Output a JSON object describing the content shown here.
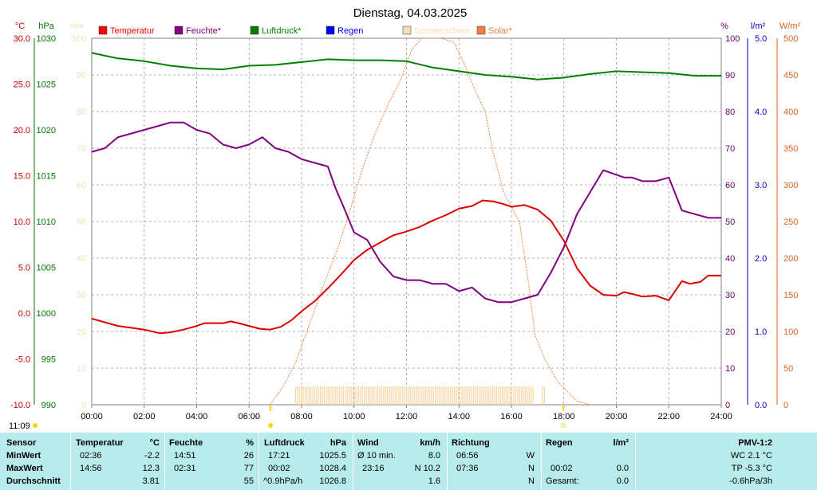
{
  "chart_data": {
    "type": "line",
    "title": "Dienstag, 04.03.2025",
    "x": {
      "ticks": [
        "00:00",
        "02:00",
        "04:00",
        "06:00",
        "08:00",
        "10:00",
        "12:00",
        "14:00",
        "16:00",
        "18:00",
        "20:00",
        "22:00",
        "24:00"
      ],
      "range_hours": [
        0,
        24
      ]
    },
    "axes": {
      "left": [
        {
          "unit": "°C",
          "color": "#cc0000",
          "range": [
            -10,
            30
          ],
          "ticks": [
            "30.0",
            "25.0",
            "20.0",
            "15.0",
            "10.0",
            "5.0",
            "0.0",
            "-5.0",
            "-10.0"
          ]
        },
        {
          "unit": "hPa",
          "color": "#007700",
          "range": [
            990,
            1030
          ],
          "ticks": [
            "1030",
            "1025",
            "1020",
            "1015",
            "1010",
            "1005",
            "1000",
            "995",
            "990"
          ]
        },
        {
          "unit": "min",
          "color": "#f5deb3",
          "range": [
            0,
            100
          ],
          "ticks": [
            "100",
            "90",
            "80",
            "70",
            "60",
            "50",
            "40",
            "30",
            "20",
            "10",
            "0"
          ]
        }
      ],
      "right": [
        {
          "unit": "%",
          "color": "#660066",
          "range": [
            0,
            100
          ],
          "ticks": [
            "100",
            "90",
            "80",
            "70",
            "60",
            "50",
            "40",
            "30",
            "20",
            "10",
            "0"
          ]
        },
        {
          "unit": "l/m²",
          "color": "#0000cc",
          "range": [
            0,
            5
          ],
          "ticks": [
            "5.0",
            "4.0",
            "3.0",
            "2.0",
            "1.0",
            "0.0"
          ]
        },
        {
          "unit": "W/m²",
          "color": "#e06020",
          "range": [
            0,
            500
          ],
          "ticks": [
            "500",
            "450",
            "400",
            "350",
            "300",
            "250",
            "200",
            "150",
            "100",
            "50",
            "0"
          ]
        }
      ]
    },
    "legend": [
      {
        "name": "Temperatur",
        "color": "#ff0000"
      },
      {
        "name": "Feuchte*",
        "color": "#800080"
      },
      {
        "name": "Luftdruck*",
        "color": "#008000"
      },
      {
        "name": "Regen",
        "color": "#0000ff"
      },
      {
        "name": "Sonnenschein",
        "color": "#f5deb3"
      },
      {
        "name": "Solar*",
        "color": "#f08040"
      }
    ],
    "series": [
      {
        "name": "Temperatur",
        "unit": "°C",
        "color": "#dd0000",
        "points": [
          [
            0,
            -0.6
          ],
          [
            0.5,
            -1.0
          ],
          [
            1,
            -1.4
          ],
          [
            1.5,
            -1.6
          ],
          [
            2,
            -1.8
          ],
          [
            2.6,
            -2.2
          ],
          [
            3,
            -2.1
          ],
          [
            3.5,
            -1.8
          ],
          [
            4,
            -1.4
          ],
          [
            4.3,
            -1.1
          ],
          [
            4.6,
            -1.1
          ],
          [
            5,
            -1.1
          ],
          [
            5.3,
            -0.9
          ],
          [
            5.6,
            -1.1
          ],
          [
            6,
            -1.4
          ],
          [
            6.4,
            -1.7
          ],
          [
            6.8,
            -1.8
          ],
          [
            7.2,
            -1.5
          ],
          [
            7.6,
            -0.8
          ],
          [
            8,
            0.2
          ],
          [
            8.5,
            1.3
          ],
          [
            9,
            2.7
          ],
          [
            9.5,
            4.2
          ],
          [
            10,
            5.8
          ],
          [
            10.5,
            6.9
          ],
          [
            11,
            7.7
          ],
          [
            11.5,
            8.5
          ],
          [
            12,
            8.9
          ],
          [
            12.5,
            9.4
          ],
          [
            13,
            10.1
          ],
          [
            13.5,
            10.7
          ],
          [
            14,
            11.4
          ],
          [
            14.5,
            11.7
          ],
          [
            14.9,
            12.3
          ],
          [
            15.3,
            12.2
          ],
          [
            15.7,
            11.9
          ],
          [
            16,
            11.6
          ],
          [
            16.5,
            11.8
          ],
          [
            17,
            11.3
          ],
          [
            17.5,
            10.1
          ],
          [
            18,
            7.9
          ],
          [
            18.5,
            4.9
          ],
          [
            19,
            3.0
          ],
          [
            19.5,
            2.0
          ],
          [
            20,
            1.9
          ],
          [
            20.3,
            2.3
          ],
          [
            20.6,
            2.1
          ],
          [
            21,
            1.8
          ],
          [
            21.5,
            1.9
          ],
          [
            22,
            1.4
          ],
          [
            22.5,
            3.5
          ],
          [
            22.8,
            3.2
          ],
          [
            23.2,
            3.4
          ],
          [
            23.5,
            4.1
          ],
          [
            24,
            4.1
          ]
        ]
      },
      {
        "name": "Feuchte*",
        "unit": "%",
        "color": "#800080",
        "points": [
          [
            0,
            69
          ],
          [
            0.5,
            70
          ],
          [
            1,
            73
          ],
          [
            1.5,
            74
          ],
          [
            2,
            75
          ],
          [
            2.5,
            76
          ],
          [
            3,
            77
          ],
          [
            3.5,
            77
          ],
          [
            4,
            75
          ],
          [
            4.5,
            74
          ],
          [
            5,
            71
          ],
          [
            5.5,
            70
          ],
          [
            6,
            71
          ],
          [
            6.5,
            73
          ],
          [
            7,
            70
          ],
          [
            7.5,
            69
          ],
          [
            8,
            67
          ],
          [
            8.5,
            66
          ],
          [
            9,
            65
          ],
          [
            9.3,
            59
          ],
          [
            9.6,
            54
          ],
          [
            10,
            47
          ],
          [
            10.5,
            45
          ],
          [
            11,
            39
          ],
          [
            11.5,
            35
          ],
          [
            12,
            34
          ],
          [
            12.5,
            34
          ],
          [
            13,
            33
          ],
          [
            13.5,
            33
          ],
          [
            14,
            31
          ],
          [
            14.5,
            32
          ],
          [
            15,
            29
          ],
          [
            15.5,
            28
          ],
          [
            16,
            28
          ],
          [
            16.5,
            29
          ],
          [
            17,
            30
          ],
          [
            17.5,
            36
          ],
          [
            18,
            43
          ],
          [
            18.5,
            52
          ],
          [
            19,
            58
          ],
          [
            19.5,
            64
          ],
          [
            19.9,
            63
          ],
          [
            20.3,
            62
          ],
          [
            20.6,
            62
          ],
          [
            21,
            61
          ],
          [
            21.5,
            61
          ],
          [
            22,
            62
          ],
          [
            22.5,
            53
          ],
          [
            23,
            52
          ],
          [
            23.5,
            51
          ],
          [
            24,
            51
          ]
        ]
      },
      {
        "name": "Luftdruck*",
        "unit": "hPa",
        "color": "#008000",
        "points": [
          [
            0,
            1028.4
          ],
          [
            1,
            1027.8
          ],
          [
            2,
            1027.5
          ],
          [
            3,
            1027.0
          ],
          [
            4,
            1026.7
          ],
          [
            5,
            1026.6
          ],
          [
            6,
            1027.0
          ],
          [
            7,
            1027.1
          ],
          [
            8,
            1027.4
          ],
          [
            9,
            1027.7
          ],
          [
            10,
            1027.6
          ],
          [
            11,
            1027.6
          ],
          [
            12,
            1027.5
          ],
          [
            13,
            1026.8
          ],
          [
            14,
            1026.4
          ],
          [
            15,
            1026.0
          ],
          [
            16,
            1025.8
          ],
          [
            17,
            1025.5
          ],
          [
            18,
            1025.7
          ],
          [
            19,
            1026.1
          ],
          [
            20,
            1026.4
          ],
          [
            21,
            1026.3
          ],
          [
            22,
            1026.2
          ],
          [
            23,
            1025.9
          ],
          [
            24,
            1025.9
          ]
        ]
      },
      {
        "name": "Solar*",
        "unit": "W/m²",
        "color": "#f08040",
        "points": [
          [
            6.8,
            0
          ],
          [
            7.3,
            25
          ],
          [
            7.8,
            60
          ],
          [
            8.3,
            110
          ],
          [
            8.8,
            160
          ],
          [
            9.3,
            205
          ],
          [
            9.8,
            260
          ],
          [
            10.3,
            320
          ],
          [
            10.8,
            370
          ],
          [
            11.3,
            410
          ],
          [
            11.8,
            445
          ],
          [
            12.2,
            485
          ],
          [
            12.6,
            505
          ],
          [
            13.0,
            510
          ],
          [
            13.3,
            500
          ],
          [
            13.8,
            495
          ],
          [
            14.2,
            465
          ],
          [
            14.6,
            430
          ],
          [
            15.0,
            400
          ],
          [
            15.3,
            345
          ],
          [
            15.7,
            290
          ],
          [
            16.0,
            270
          ],
          [
            16.3,
            250
          ],
          [
            16.6,
            180
          ],
          [
            16.9,
            95
          ],
          [
            17.3,
            60
          ],
          [
            17.8,
            30
          ],
          [
            18.5,
            5
          ],
          [
            19,
            0
          ]
        ]
      }
    ],
    "sunshine_bars": {
      "name": "Sonnenschein",
      "from_hour": 7.75,
      "to_hour": 17.3
    },
    "markers": {
      "time_label": "11:09"
    }
  },
  "stats": {
    "headers": {
      "sensor": "Sensor",
      "temp": "Temperatur",
      "temp_unit": "°C",
      "hum": "Feuchte",
      "hum_unit": "%",
      "press": "Luftdruck",
      "press_unit": "hPa",
      "wind": "Wind",
      "wind_unit": "km/h",
      "dir": "Richtung",
      "rain": "Regen",
      "rain_unit": "l/m²",
      "pmv": "PMV-1:2"
    },
    "rows": [
      {
        "label": "MinWert",
        "temp_time": "02:36",
        "temp_val": "-2.2",
        "hum_time": "14:51",
        "hum_val": "26",
        "press_time": "17:21",
        "press_val": "1025.5",
        "wind_label": "Ø 10 min.",
        "wind_val": "8.0",
        "dir_time": "06:56",
        "dir_val": "W",
        "rain_time": "",
        "rain_val": "",
        "pmv": "WC 2.1 °C"
      },
      {
        "label": "MaxWert",
        "temp_time": "14:56",
        "temp_val": "12.3",
        "hum_time": "02:31",
        "hum_val": "77",
        "press_time": "00:02",
        "press_val": "1028.4",
        "wind_label": "23:16",
        "wind_val": "N 10.2",
        "dir_time": "07:36",
        "dir_val": "N",
        "rain_time": "00:02",
        "rain_val": "0.0",
        "pmv": "TP -5.3 °C"
      },
      {
        "label": "Durchschnitt",
        "temp_time": "",
        "temp_val": "3.81",
        "hum_time": "",
        "hum_val": "55",
        "press_time": "^0.9hPa/h",
        "press_val": "1026.8",
        "wind_label": "",
        "wind_val": "1.6",
        "dir_time": "",
        "dir_val": "N",
        "rain_time": "Gesamt:",
        "rain_val": "0.0",
        "pmv": "-0.6hPa/3h"
      }
    ]
  }
}
